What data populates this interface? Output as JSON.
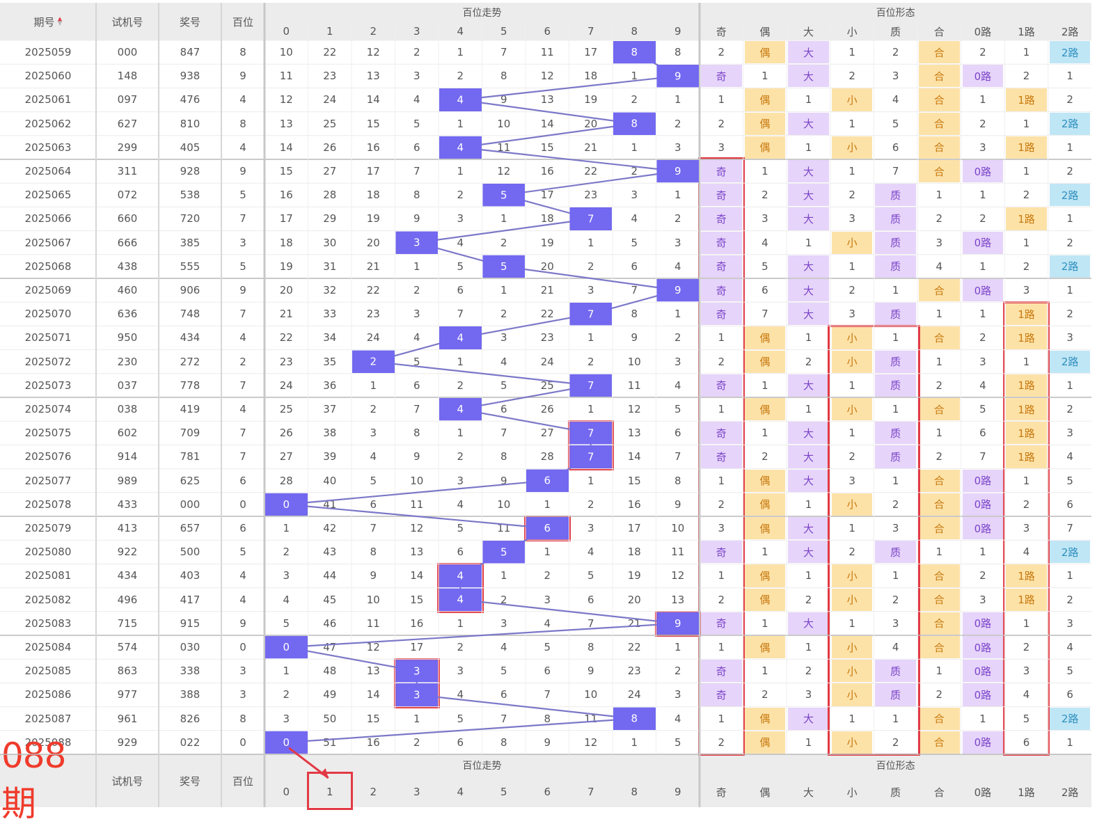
{
  "header": {
    "issue": "期号",
    "trial": "试机号",
    "prize": "奖号",
    "hundreds": "百位",
    "trend_group": "百位走势",
    "form_group": "百位形态",
    "digits": [
      "0",
      "1",
      "2",
      "3",
      "4",
      "5",
      "6",
      "7",
      "8",
      "9"
    ],
    "forms": [
      "奇",
      "偶",
      "大",
      "小",
      "质",
      "合",
      "0路",
      "1路",
      "2路"
    ]
  },
  "footer": {
    "big_label": "088期",
    "trial": "试机号",
    "prize": "奖号",
    "hundreds": "百位",
    "trend_group": "百位走势",
    "form_group": "百位形态",
    "digits": [
      "0",
      "1",
      "2",
      "3",
      "4",
      "5",
      "6",
      "7",
      "8",
      "9"
    ],
    "forms": [
      "奇",
      "偶",
      "大",
      "小",
      "质",
      "合",
      "0路",
      "1路",
      "2路"
    ]
  },
  "rows": [
    {
      "issue": "2025059",
      "trial": "000",
      "prize": "847",
      "h": "8",
      "t": [
        "10",
        "22",
        "12",
        "2",
        "1",
        "7",
        "11",
        "17",
        "8",
        "8"
      ],
      "f": [
        "2",
        "偶",
        "大",
        "1",
        "2",
        "合",
        "2",
        "1",
        "2路"
      ]
    },
    {
      "issue": "2025060",
      "trial": "148",
      "prize": "938",
      "h": "9",
      "t": [
        "11",
        "23",
        "13",
        "3",
        "2",
        "8",
        "12",
        "18",
        "1",
        "9"
      ],
      "f": [
        "奇",
        "1",
        "大",
        "2",
        "3",
        "合",
        "0路",
        "2",
        "1"
      ]
    },
    {
      "issue": "2025061",
      "trial": "097",
      "prize": "476",
      "h": "4",
      "t": [
        "12",
        "24",
        "14",
        "4",
        "4",
        "9",
        "13",
        "19",
        "2",
        "1"
      ],
      "f": [
        "1",
        "偶",
        "1",
        "小",
        "4",
        "合",
        "1",
        "1路",
        "2"
      ]
    },
    {
      "issue": "2025062",
      "trial": "627",
      "prize": "810",
      "h": "8",
      "t": [
        "13",
        "25",
        "15",
        "5",
        "1",
        "10",
        "14",
        "20",
        "8",
        "2"
      ],
      "f": [
        "2",
        "偶",
        "大",
        "1",
        "5",
        "合",
        "2",
        "1",
        "2路"
      ]
    },
    {
      "issue": "2025063",
      "trial": "299",
      "prize": "405",
      "h": "4",
      "t": [
        "14",
        "26",
        "16",
        "6",
        "4",
        "11",
        "15",
        "21",
        "1",
        "3"
      ],
      "f": [
        "3",
        "偶",
        "1",
        "小",
        "6",
        "合",
        "3",
        "1路",
        "1"
      ]
    },
    {
      "issue": "2025064",
      "trial": "311",
      "prize": "928",
      "h": "9",
      "t": [
        "15",
        "27",
        "17",
        "7",
        "1",
        "12",
        "16",
        "22",
        "2",
        "9"
      ],
      "f": [
        "奇",
        "1",
        "大",
        "1",
        "7",
        "合",
        "0路",
        "1",
        "2"
      ]
    },
    {
      "issue": "2025065",
      "trial": "072",
      "prize": "538",
      "h": "5",
      "t": [
        "16",
        "28",
        "18",
        "8",
        "2",
        "5",
        "17",
        "23",
        "3",
        "1"
      ],
      "f": [
        "奇",
        "2",
        "大",
        "2",
        "质",
        "1",
        "1",
        "2",
        "2路"
      ]
    },
    {
      "issue": "2025066",
      "trial": "660",
      "prize": "720",
      "h": "7",
      "t": [
        "17",
        "29",
        "19",
        "9",
        "3",
        "1",
        "18",
        "7",
        "4",
        "2"
      ],
      "f": [
        "奇",
        "3",
        "大",
        "3",
        "质",
        "2",
        "2",
        "1路",
        "1"
      ]
    },
    {
      "issue": "2025067",
      "trial": "666",
      "prize": "385",
      "h": "3",
      "t": [
        "18",
        "30",
        "20",
        "3",
        "4",
        "2",
        "19",
        "1",
        "5",
        "3"
      ],
      "f": [
        "奇",
        "4",
        "1",
        "小",
        "质",
        "3",
        "0路",
        "1",
        "2"
      ]
    },
    {
      "issue": "2025068",
      "trial": "438",
      "prize": "555",
      "h": "5",
      "t": [
        "19",
        "31",
        "21",
        "1",
        "5",
        "5",
        "20",
        "2",
        "6",
        "4"
      ],
      "f": [
        "奇",
        "5",
        "大",
        "1",
        "质",
        "4",
        "1",
        "2",
        "2路"
      ]
    },
    {
      "issue": "2025069",
      "trial": "460",
      "prize": "906",
      "h": "9",
      "t": [
        "20",
        "32",
        "22",
        "2",
        "6",
        "1",
        "21",
        "3",
        "7",
        "9"
      ],
      "f": [
        "奇",
        "6",
        "大",
        "2",
        "1",
        "合",
        "0路",
        "3",
        "1"
      ]
    },
    {
      "issue": "2025070",
      "trial": "636",
      "prize": "748",
      "h": "7",
      "t": [
        "21",
        "33",
        "23",
        "3",
        "7",
        "2",
        "22",
        "7",
        "8",
        "1"
      ],
      "f": [
        "奇",
        "7",
        "大",
        "3",
        "质",
        "1",
        "1",
        "1路",
        "2"
      ]
    },
    {
      "issue": "2025071",
      "trial": "950",
      "prize": "434",
      "h": "4",
      "t": [
        "22",
        "34",
        "24",
        "4",
        "4",
        "3",
        "23",
        "1",
        "9",
        "2"
      ],
      "f": [
        "1",
        "偶",
        "1",
        "小",
        "1",
        "合",
        "2",
        "1路",
        "3"
      ]
    },
    {
      "issue": "2025072",
      "trial": "230",
      "prize": "272",
      "h": "2",
      "t": [
        "23",
        "35",
        "2",
        "5",
        "1",
        "4",
        "24",
        "2",
        "10",
        "3"
      ],
      "f": [
        "2",
        "偶",
        "2",
        "小",
        "质",
        "1",
        "3",
        "1",
        "2路"
      ]
    },
    {
      "issue": "2025073",
      "trial": "037",
      "prize": "778",
      "h": "7",
      "t": [
        "24",
        "36",
        "1",
        "6",
        "2",
        "5",
        "25",
        "7",
        "11",
        "4"
      ],
      "f": [
        "奇",
        "1",
        "大",
        "1",
        "质",
        "2",
        "4",
        "1路",
        "1"
      ]
    },
    {
      "issue": "2025074",
      "trial": "038",
      "prize": "419",
      "h": "4",
      "t": [
        "25",
        "37",
        "2",
        "7",
        "4",
        "6",
        "26",
        "1",
        "12",
        "5"
      ],
      "f": [
        "1",
        "偶",
        "1",
        "小",
        "1",
        "合",
        "5",
        "1路",
        "2"
      ]
    },
    {
      "issue": "2025075",
      "trial": "602",
      "prize": "709",
      "h": "7",
      "t": [
        "26",
        "38",
        "3",
        "8",
        "1",
        "7",
        "27",
        "7",
        "13",
        "6"
      ],
      "f": [
        "奇",
        "1",
        "大",
        "1",
        "质",
        "1",
        "6",
        "1路",
        "3"
      ]
    },
    {
      "issue": "2025076",
      "trial": "914",
      "prize": "781",
      "h": "7",
      "t": [
        "27",
        "39",
        "4",
        "9",
        "2",
        "8",
        "28",
        "7",
        "14",
        "7"
      ],
      "f": [
        "奇",
        "2",
        "大",
        "2",
        "质",
        "2",
        "7",
        "1路",
        "4"
      ]
    },
    {
      "issue": "2025077",
      "trial": "989",
      "prize": "625",
      "h": "6",
      "t": [
        "28",
        "40",
        "5",
        "10",
        "3",
        "9",
        "6",
        "1",
        "15",
        "8"
      ],
      "f": [
        "1",
        "偶",
        "大",
        "3",
        "1",
        "合",
        "0路",
        "1",
        "5"
      ]
    },
    {
      "issue": "2025078",
      "trial": "433",
      "prize": "000",
      "h": "0",
      "t": [
        "0",
        "41",
        "6",
        "11",
        "4",
        "10",
        "1",
        "2",
        "16",
        "9"
      ],
      "f": [
        "2",
        "偶",
        "1",
        "小",
        "2",
        "合",
        "0路",
        "2",
        "6"
      ]
    },
    {
      "issue": "2025079",
      "trial": "413",
      "prize": "657",
      "h": "6",
      "t": [
        "1",
        "42",
        "7",
        "12",
        "5",
        "11",
        "6",
        "3",
        "17",
        "10"
      ],
      "f": [
        "3",
        "偶",
        "大",
        "1",
        "3",
        "合",
        "0路",
        "3",
        "7"
      ]
    },
    {
      "issue": "2025080",
      "trial": "922",
      "prize": "500",
      "h": "5",
      "t": [
        "2",
        "43",
        "8",
        "13",
        "6",
        "5",
        "1",
        "4",
        "18",
        "11"
      ],
      "f": [
        "奇",
        "1",
        "大",
        "2",
        "质",
        "1",
        "1",
        "4",
        "2路"
      ]
    },
    {
      "issue": "2025081",
      "trial": "434",
      "prize": "403",
      "h": "4",
      "t": [
        "3",
        "44",
        "9",
        "14",
        "4",
        "1",
        "2",
        "5",
        "19",
        "12"
      ],
      "f": [
        "1",
        "偶",
        "1",
        "小",
        "1",
        "合",
        "2",
        "1路",
        "1"
      ]
    },
    {
      "issue": "2025082",
      "trial": "496",
      "prize": "417",
      "h": "4",
      "t": [
        "4",
        "45",
        "10",
        "15",
        "4",
        "2",
        "3",
        "6",
        "20",
        "13"
      ],
      "f": [
        "2",
        "偶",
        "2",
        "小",
        "2",
        "合",
        "3",
        "1路",
        "2"
      ]
    },
    {
      "issue": "2025083",
      "trial": "715",
      "prize": "915",
      "h": "9",
      "t": [
        "5",
        "46",
        "11",
        "16",
        "1",
        "3",
        "4",
        "7",
        "21",
        "9"
      ],
      "f": [
        "奇",
        "1",
        "大",
        "1",
        "3",
        "合",
        "0路",
        "1",
        "3"
      ]
    },
    {
      "issue": "2025084",
      "trial": "574",
      "prize": "030",
      "h": "0",
      "t": [
        "0",
        "47",
        "12",
        "17",
        "2",
        "4",
        "5",
        "8",
        "22",
        "1"
      ],
      "f": [
        "1",
        "偶",
        "1",
        "小",
        "4",
        "合",
        "0路",
        "2",
        "4"
      ]
    },
    {
      "issue": "2025085",
      "trial": "863",
      "prize": "338",
      "h": "3",
      "t": [
        "1",
        "48",
        "13",
        "3",
        "3",
        "5",
        "6",
        "9",
        "23",
        "2"
      ],
      "f": [
        "奇",
        "1",
        "2",
        "小",
        "质",
        "1",
        "0路",
        "3",
        "5"
      ]
    },
    {
      "issue": "2025086",
      "trial": "977",
      "prize": "388",
      "h": "3",
      "t": [
        "2",
        "49",
        "14",
        "3",
        "4",
        "6",
        "7",
        "10",
        "24",
        "3"
      ],
      "f": [
        "奇",
        "2",
        "3",
        "小",
        "质",
        "2",
        "0路",
        "4",
        "6"
      ]
    },
    {
      "issue": "2025087",
      "trial": "961",
      "prize": "826",
      "h": "8",
      "t": [
        "3",
        "50",
        "15",
        "1",
        "5",
        "7",
        "8",
        "11",
        "8",
        "4"
      ],
      "f": [
        "1",
        "偶",
        "大",
        "1",
        "1",
        "合",
        "1",
        "5",
        "2路"
      ]
    },
    {
      "issue": "2025088",
      "trial": "929",
      "prize": "022",
      "h": "0",
      "t": [
        "0",
        "51",
        "16",
        "2",
        "6",
        "8",
        "9",
        "12",
        "1",
        "5"
      ],
      "f": [
        "2",
        "偶",
        "1",
        "小",
        "2",
        "合",
        "0路",
        "6",
        "1"
      ]
    }
  ],
  "colors": {
    "ball": "#7368f0",
    "purple_cell": "#e6d4fa",
    "orange_cell": "#fde2a8",
    "blue_cell": "#bfe6f5",
    "highlight": "#e23a45",
    "header_bg": "#ececec"
  },
  "sort_icon": "sort-up-down-icon",
  "highlights": [
    {
      "col": "form-odd",
      "from_row": 5,
      "to_row": 29
    },
    {
      "col": "form-small",
      "from_row": 12,
      "to_row": 29
    },
    {
      "col": "form-r1",
      "from_row": 11,
      "to_row": 29
    },
    {
      "col": "trend-7",
      "from_row": 16,
      "to_row": 17
    },
    {
      "col": "trend-6",
      "from_row": 20,
      "to_row": 20
    },
    {
      "col": "trend-4",
      "from_row": 22,
      "to_row": 23
    },
    {
      "col": "trend-9",
      "from_row": 24,
      "to_row": 24
    },
    {
      "col": "trend-3",
      "from_row": 26,
      "to_row": 27
    },
    {
      "col": "footer-digit-1",
      "from_row": 30,
      "to_row": 30
    }
  ]
}
